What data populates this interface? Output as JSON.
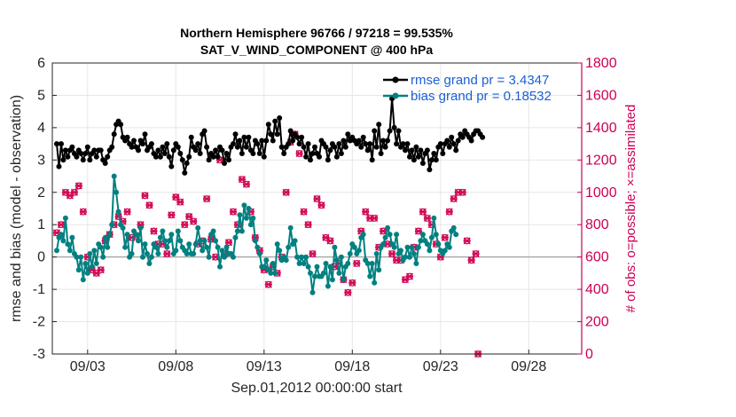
{
  "chart_data": {
    "type": "line",
    "title_line1": "Northern Hemisphere 96766 / 97218 = 99.535%",
    "title_line2": "SAT_V_WIND_COMPONENT @ 400 hPa",
    "xlabel": "Sep.01,2012 00:00:00 start",
    "ylabel": "rmse and bias (model - observation)",
    "ylabel_right": "# of obs: o=possible; ×=assimilated",
    "ylim": [
      -3,
      6
    ],
    "ylim_right": [
      0,
      1800
    ],
    "xlim": [
      1,
      31
    ],
    "yticks": [
      "-3",
      "-2",
      "-1",
      "0",
      "1",
      "2",
      "3",
      "4",
      "5",
      "6"
    ],
    "yticks_right": [
      "0",
      "200",
      "400",
      "600",
      "800",
      "1000",
      "1200",
      "1400",
      "1600",
      "1800"
    ],
    "xticks": [
      {
        "x": 3,
        "label": "09/03"
      },
      {
        "x": 8,
        "label": "09/08"
      },
      {
        "x": 13,
        "label": "09/13"
      },
      {
        "x": 18,
        "label": "09/18"
      },
      {
        "x": 23,
        "label": "09/23"
      },
      {
        "x": 28,
        "label": "09/28"
      }
    ],
    "x_step_days": 0.125,
    "grid": true,
    "legend_position": "top-right",
    "series": [
      {
        "name": "rmse grand pr = 3.4347",
        "color": "#000000",
        "values": [
          3.5,
          2.8,
          3.5,
          3.0,
          3.3,
          3.1,
          3.3,
          3.4,
          3.2,
          3.1,
          3.3,
          3.2,
          3.0,
          3.2,
          3.4,
          3.0,
          3.2,
          3.3,
          3.1,
          3.3,
          3.3,
          3.0,
          2.9,
          3.1,
          3.3,
          3.4,
          3.8,
          4.1,
          4.2,
          4.1,
          3.7,
          3.6,
          3.7,
          3.5,
          3.4,
          3.6,
          3.4,
          3.3,
          3.6,
          3.5,
          3.8,
          3.3,
          3.4,
          3.5,
          3.2,
          3.1,
          3.3,
          3.1,
          3.4,
          3.2,
          3.5,
          3.1,
          2.8,
          3.3,
          3.5,
          3.4,
          3.2,
          3.0,
          2.6,
          2.9,
          3.1,
          3.7,
          3.4,
          3.3,
          3.5,
          3.2,
          3.8,
          3.9,
          3.4,
          3.0,
          3.2,
          3.1,
          3.3,
          3.1,
          3.4,
          3.3,
          2.9,
          3.2,
          3.0,
          3.4,
          3.5,
          3.8,
          3.4,
          3.6,
          3.2,
          3.7,
          3.4,
          3.7,
          3.3,
          3.2,
          3.6,
          3.5,
          3.2,
          3.6,
          3.1,
          3.6,
          4.1,
          3.8,
          3.6,
          4.2,
          3.8,
          4.3,
          3.4,
          3.2,
          3.4,
          3.5,
          3.9,
          3.6,
          3.8,
          3.7,
          3.5,
          3.7,
          3.4,
          3.1,
          3.5,
          3.0,
          3.2,
          3.4,
          3.2,
          3.1,
          3.6,
          3.5,
          3.4,
          3.0,
          3.3,
          3.5,
          3.4,
          3.1,
          3.5,
          3.2,
          3.6,
          3.4,
          3.8,
          3.6,
          3.7,
          3.6,
          3.5,
          3.6,
          3.4,
          3.7,
          3.5,
          3.3,
          3.5,
          3.0,
          3.9,
          3.4,
          4.1,
          3.2,
          3.6,
          3.4,
          3.6,
          3.9,
          4.9,
          4.0,
          3.5,
          3.9,
          3.4,
          3.5,
          3.3,
          3.5,
          3.1,
          3.3,
          3.0,
          3.4,
          3.1,
          3.3,
          2.9,
          3.2,
          3.3,
          2.7,
          3.0,
          3.2,
          3.0,
          3.4,
          3.5,
          3.2,
          3.5,
          3.6,
          3.4,
          3.7,
          3.5,
          3.3,
          3.6,
          3.8,
          3.7,
          3.9,
          3.8,
          3.7,
          3.6,
          3.8,
          3.9,
          3.9,
          3.8,
          3.7
        ]
      },
      {
        "name": "bias grand pr = 0.18532",
        "color": "#008080",
        "values": [
          0.2,
          0.6,
          0.7,
          0.5,
          1.2,
          0.4,
          0.2,
          0.6,
          0.1,
          0.0,
          -0.4,
          0.0,
          -0.7,
          -0.2,
          -0.5,
          0.1,
          -0.3,
          0.2,
          -0.2,
          0.4,
          0.3,
          0.0,
          0.6,
          0.3,
          0.7,
          1.0,
          2.5,
          2.0,
          1.4,
          1.0,
          0.9,
          0.3,
          0.7,
          0.0,
          0.1,
          0.8,
          0.7,
          0.5,
          0.9,
          0.0,
          0.4,
          0.1,
          -0.2,
          0.0,
          0.4,
          0.3,
          0.1,
          0.6,
          0.8,
          0.5,
          0.3,
          0.5,
          0.7,
          0.1,
          0.2,
          0.8,
          0.5,
          0.3,
          0.2,
          0.1,
          0.4,
          0.1,
          0.1,
          0.4,
          0.9,
          0.5,
          0.2,
          0.5,
          0.3,
          0.0,
          0.7,
          0.8,
          0.5,
          0.3,
          -0.3,
          0.2,
          0.0,
          0.3,
          0.1,
          0.1,
          0.0,
          0.6,
          0.8,
          1.3,
          0.8,
          1.6,
          1.2,
          1.5,
          1.0,
          1.2,
          0.5,
          0.3,
          0.1,
          -0.3,
          -0.3,
          -0.1,
          -0.4,
          -0.5,
          -0.2,
          -0.5,
          0.4,
          0.2,
          -0.1,
          0.0,
          -0.1,
          0.3,
          0.9,
          0.4,
          0.5,
          0.0,
          -0.2,
          0.0,
          -0.2,
          0.0,
          -0.3,
          -0.5,
          -1.1,
          -0.6,
          -0.3,
          -0.6,
          -0.6,
          -0.5,
          -0.2,
          -0.9,
          -0.3,
          -0.7,
          0.3,
          -0.1,
          -0.5,
          0.0,
          -0.7,
          -0.3,
          -0.2,
          0.1,
          0.4,
          0.3,
          0.1,
          0.2,
          0.6,
          0.7,
          -0.1,
          -0.2,
          -0.6,
          -0.2,
          -0.8,
          0.1,
          -0.4,
          0.3,
          0.4,
          0.6,
          0.9,
          0.7,
          0.4,
          0.3,
          0.7,
          0.1,
          0.2,
          -0.1,
          0.0,
          0.3,
          0.0,
          0.3,
          0.1,
          -0.2,
          0.3,
          0.5,
          0.7,
          0.5,
          0.4,
          0.2,
          0.6,
          1.2,
          0.7,
          0.4,
          0.2,
          0.1,
          0.2,
          0.4,
          0.3,
          0.8,
          0.9,
          0.7
        ]
      }
    ],
    "obs_possible": [
      750,
      700,
      800,
      820,
      1000,
      950,
      980,
      1020,
      1000,
      930,
      1040,
      1000,
      880,
      780,
      600,
      520,
      520,
      560,
      500,
      550,
      520,
      620,
      700,
      760,
      740,
      720,
      800,
      920,
      850,
      1000,
      820,
      790,
      880,
      760,
      720,
      760,
      730,
      840,
      800,
      1040,
      980,
      1040,
      920,
      800,
      760,
      840,
      680,
      660,
      680,
      620,
      620,
      590,
      860,
      980,
      970,
      860,
      940,
      880,
      800,
      820,
      850,
      900,
      820,
      720,
      680,
      900,
      700,
      1040,
      960,
      740,
      710,
      620,
      600,
      740,
      1200,
      780,
      620,
      600,
      690,
      650,
      880,
      680,
      800,
      800,
      1080,
      1150,
      1050,
      900,
      880,
      800,
      720,
      700,
      640,
      620,
      520,
      480,
      430,
      560,
      540,
      520,
      500,
      460,
      600,
      640,
      1000,
      1280,
      1310,
      1360,
      1360,
      1300,
      1240,
      1000,
      880,
      840,
      800,
      760,
      620,
      880,
      960,
      1000,
      920,
      800,
      720,
      640,
      700,
      620,
      540,
      580,
      560,
      460,
      460,
      420,
      380,
      340,
      440,
      480,
      560,
      700,
      760,
      840,
      880,
      900,
      840,
      960,
      840,
      720,
      660,
      800,
      760,
      840,
      680,
      660,
      620,
      580,
      580,
      620,
      580,
      520,
      460,
      440,
      480,
      620,
      660,
      720,
      760,
      780,
      880,
      900,
      840,
      760,
      800,
      720,
      680,
      640,
      600,
      680,
      720,
      800,
      880,
      900,
      960,
      980,
      1000,
      1000,
      1000,
      840,
      700,
      620,
      580,
      560,
      620,
      0
    ]
  }
}
